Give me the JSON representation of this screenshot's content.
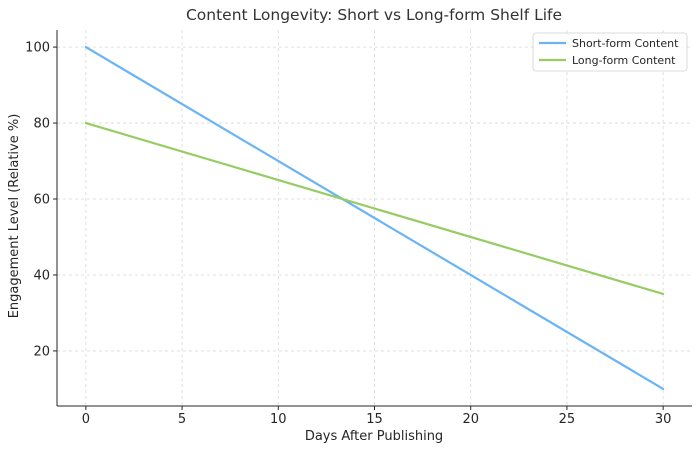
{
  "chart_data": {
    "type": "line",
    "title": "Content Longevity: Short vs Long-form Shelf Life",
    "xlabel": "Days After Publishing",
    "ylabel": "Engagement Level (Relative %)",
    "x": [
      0,
      30
    ],
    "xlim": [
      -1.5,
      31.5
    ],
    "ylim": [
      5.5,
      104.5
    ],
    "xticks": [
      0,
      5,
      10,
      15,
      20,
      25,
      30
    ],
    "yticks": [
      20,
      40,
      60,
      80,
      100
    ],
    "grid": true,
    "legend_position": "top-right",
    "series": [
      {
        "name": "Short-form Content",
        "color": "#6ab4f5",
        "values": [
          100,
          10
        ]
      },
      {
        "name": "Long-form Content",
        "color": "#97cc64",
        "values": [
          80,
          35
        ]
      }
    ]
  }
}
